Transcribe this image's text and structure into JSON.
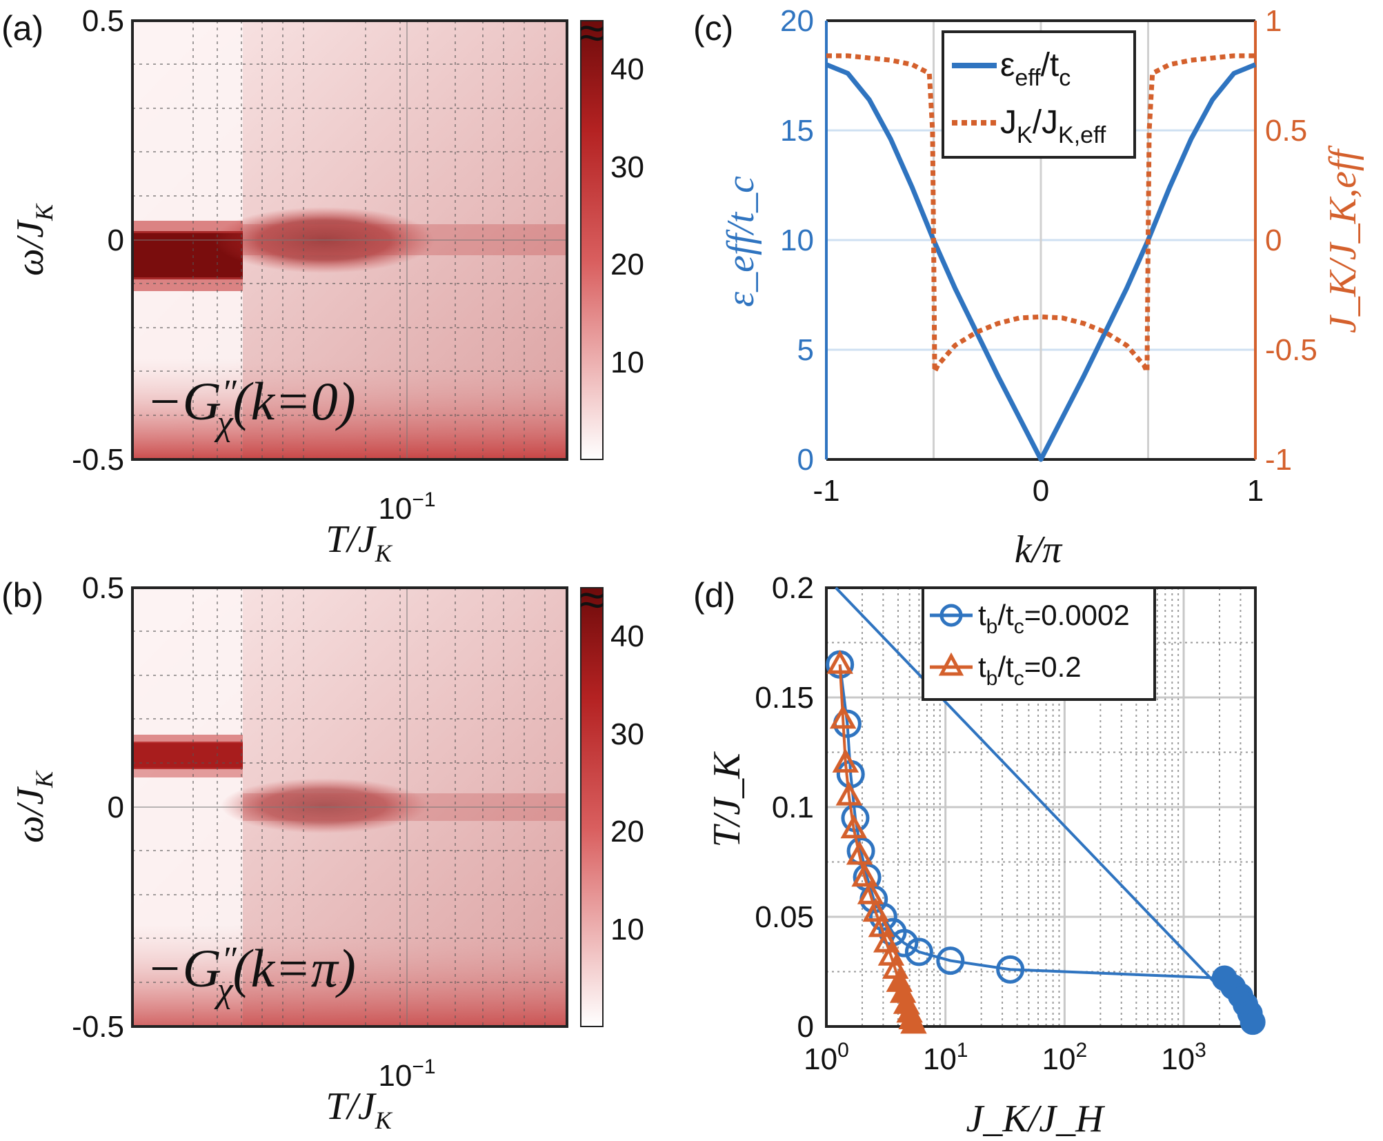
{
  "colors": {
    "blue": "#2f74c0",
    "orange": "#d4602c",
    "dark_red": "#7a0d0d",
    "white": "#ffffff",
    "grid": "#bfbfbf"
  },
  "panel_labels": {
    "a": "(a)",
    "b": "(b)",
    "c": "(c)",
    "d": "(d)"
  },
  "chart_data": [
    {
      "id": "a",
      "type": "heatmap",
      "title": "",
      "annotation": "−G″χ(k=0)",
      "annotation_parts": {
        "prefix": "−G",
        "prime": "″",
        "sub": "χ",
        "arg": "(k=0)"
      },
      "xlabel": "T/J_K",
      "xlabel_parts": {
        "main": "T/J",
        "sub": "K"
      },
      "ylabel": "ω/J_K",
      "ylabel_parts": {
        "main": "ω/J",
        "sub": "K"
      },
      "xticks": [
        "10^-1"
      ],
      "yticks": [
        "0.5",
        "0",
        "-0.5"
      ],
      "ylim": [
        -0.5,
        0.5
      ],
      "colorbar": {
        "ticks": [
          "10",
          "20",
          "30",
          "40"
        ],
        "range": [
          0,
          45
        ],
        "break_symbol": "≈"
      },
      "features": [
        {
          "T_region": "low",
          "omega_center": -0.05,
          "peak_value": 45
        },
        {
          "T_region": "high",
          "omega_center": 0.0,
          "peak_value": 18
        }
      ]
    },
    {
      "id": "b",
      "type": "heatmap",
      "title": "",
      "annotation": "−G″χ(k=π)",
      "annotation_parts": {
        "prefix": "−G",
        "prime": "″",
        "sub": "χ",
        "arg": "(k=π)"
      },
      "xlabel": "T/J_K",
      "xlabel_parts": {
        "main": "T/J",
        "sub": "K"
      },
      "ylabel": "ω/J_K",
      "ylabel_parts": {
        "main": "ω/J",
        "sub": "K"
      },
      "xticks": [
        "10^-1"
      ],
      "yticks": [
        "0.5",
        "0",
        "-0.5"
      ],
      "ylim": [
        -0.5,
        0.5
      ],
      "colorbar": {
        "ticks": [
          "10",
          "20",
          "30",
          "40"
        ],
        "range": [
          0,
          45
        ],
        "break_symbol": "≈"
      },
      "features": [
        {
          "T_region": "low",
          "omega_center": 0.12,
          "peak_value": 35
        },
        {
          "T_region": "high",
          "omega_center": 0.0,
          "peak_value": 15
        }
      ]
    },
    {
      "id": "c",
      "type": "line",
      "title": "",
      "xlabel": "k/π",
      "ylabel_left": "ε_eff/t_c",
      "ylabel_right": "J_K/J_K,eff",
      "xlim": [
        -1,
        1
      ],
      "ylim_left": [
        0,
        20
      ],
      "ylim_right": [
        -1,
        1
      ],
      "xticks": [
        "-1",
        "0",
        "1"
      ],
      "yticks_left": [
        "0",
        "5",
        "10",
        "15",
        "20"
      ],
      "yticks_right": [
        "-1",
        "-0.5",
        "0",
        "0.5",
        "1"
      ],
      "legend_position": "top-center",
      "series": [
        {
          "name": "ε_eff/t_c",
          "legend_parts": {
            "main": "ε",
            "sub": "eff",
            "rest": "/t",
            "sub2": "c"
          },
          "axis": "left",
          "style": "solid",
          "x": [
            -1,
            -0.9,
            -0.8,
            -0.7,
            -0.6,
            -0.5,
            -0.4,
            -0.3,
            -0.2,
            -0.1,
            0,
            0.1,
            0.2,
            0.3,
            0.4,
            0.5,
            0.6,
            0.7,
            0.8,
            0.9,
            1
          ],
          "y": [
            18,
            17.6,
            16.4,
            14.6,
            12.4,
            10,
            7.8,
            5.8,
            3.8,
            1.9,
            0,
            1.9,
            3.8,
            5.8,
            7.8,
            10,
            12.4,
            14.6,
            16.4,
            17.6,
            18
          ]
        },
        {
          "name": "J_K/J_K,eff",
          "legend_parts": {
            "main": "J",
            "sub": "K",
            "rest": "/J",
            "sub2": "K,eff"
          },
          "axis": "right",
          "style": "dotted",
          "x": [
            -1,
            -0.9,
            -0.8,
            -0.7,
            -0.6,
            -0.52,
            -0.505,
            -0.5,
            -0.495,
            -0.48,
            -0.4,
            -0.3,
            -0.2,
            -0.1,
            0,
            0.1,
            0.2,
            0.3,
            0.4,
            0.48,
            0.495,
            0.5,
            0.505,
            0.52,
            0.6,
            0.7,
            0.8,
            0.9,
            1
          ],
          "y": [
            0.84,
            0.84,
            0.83,
            0.82,
            0.8,
            0.76,
            0.5,
            0,
            -0.6,
            -0.57,
            -0.48,
            -0.42,
            -0.38,
            -0.355,
            -0.35,
            -0.355,
            -0.38,
            -0.42,
            -0.48,
            -0.57,
            -0.6,
            0,
            0.5,
            0.76,
            0.8,
            0.82,
            0.83,
            0.84,
            0.84
          ]
        }
      ]
    },
    {
      "id": "d",
      "type": "line",
      "title": "",
      "xlabel": "J_K/J_H",
      "ylabel": "T/J_K",
      "xscale": "log",
      "xlim": [
        1,
        4000
      ],
      "ylim": [
        0,
        0.2
      ],
      "xticks": [
        "10^0",
        "10^1",
        "10^2",
        "10^3"
      ],
      "yticks": [
        "0",
        "0.05",
        "0.1",
        "0.15",
        "0.2"
      ],
      "legend_position": "top-right",
      "series": [
        {
          "name": "t_b/t_c=0.0002",
          "legend_parts": {
            "main": "t",
            "sub": "b",
            "rest": "/t",
            "sub2": "c",
            "tail": "=0.0002"
          },
          "marker": "circle",
          "x": [
            1.3,
            1.5,
            1.6,
            1.75,
            1.95,
            2.2,
            2.5,
            3.0,
            3.6,
            4.5,
            6.0,
            11,
            35,
            2200,
            2600,
            3000,
            3300,
            3600,
            3800
          ],
          "y": [
            0.165,
            0.138,
            0.115,
            0.095,
            0.08,
            0.068,
            0.058,
            0.05,
            0.043,
            0.038,
            0.034,
            0.03,
            0.026,
            0.022,
            0.018,
            0.014,
            0.01,
            0.006,
            0.002
          ]
        },
        {
          "name": "t_b/t_c=0.2",
          "legend_parts": {
            "main": "t",
            "sub": "b",
            "rest": "/t",
            "sub2": "c",
            "tail": "=0.2"
          },
          "marker": "triangle",
          "x": [
            1.3,
            1.38,
            1.45,
            1.55,
            1.7,
            1.9,
            2.1,
            2.35,
            2.6,
            2.9,
            3.2,
            3.5,
            3.8,
            4.1,
            4.4,
            4.7,
            5.0,
            5.2,
            5.4
          ],
          "y": [
            0.165,
            0.14,
            0.12,
            0.105,
            0.09,
            0.078,
            0.068,
            0.06,
            0.052,
            0.045,
            0.038,
            0.032,
            0.026,
            0.02,
            0.015,
            0.01,
            0.006,
            0.003,
            0.001
          ]
        }
      ]
    }
  ]
}
